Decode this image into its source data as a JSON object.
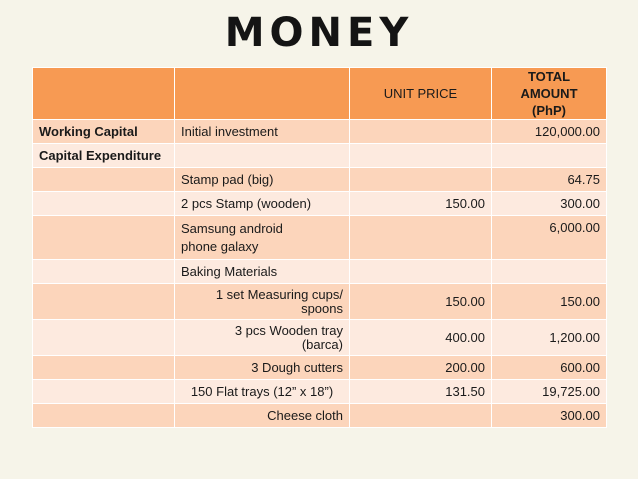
{
  "title": "MONEY",
  "header": {
    "unit_price": "UNIT PRICE",
    "total_amount_line1": "TOTAL AMOUNT",
    "total_amount_line2": "(PhP)"
  },
  "rows": [
    {
      "category": "Working Capital",
      "item": "Initial investment",
      "unit_price": "",
      "total": "120,000.00"
    },
    {
      "category": "Capital Expenditure",
      "item": "",
      "unit_price": "",
      "total": ""
    },
    {
      "category": "",
      "item": "Stamp pad (big)",
      "unit_price": "",
      "total": "64.75"
    },
    {
      "category": "",
      "item": "2 pcs Stamp (wooden)",
      "unit_price": "150.00",
      "total": "300.00"
    },
    {
      "category": "",
      "item_line1": "Samsung android",
      "item_line2": "phone galaxy",
      "unit_price": "",
      "total": "6,000.00"
    },
    {
      "category": "",
      "item": "Baking Materials",
      "unit_price": "",
      "total": ""
    },
    {
      "category": "",
      "item_line1": "1 set Measuring cups/",
      "item_line2": "spoons",
      "unit_price": "150.00",
      "total": "150.00"
    },
    {
      "category": "",
      "item_line1": "3 pcs Wooden tray",
      "item_line2": "(barca)",
      "unit_price": "400.00",
      "total": "1,200.00"
    },
    {
      "category": "",
      "item": "3 Dough cutters",
      "unit_price": "200.00",
      "total": "600.00"
    },
    {
      "category": "",
      "item": "150 Flat trays (12” x 18”)",
      "unit_price": "131.50",
      "total": "19,725.00"
    },
    {
      "category": "",
      "item": "Cheese cloth",
      "unit_price": "",
      "total": "300.00"
    }
  ]
}
